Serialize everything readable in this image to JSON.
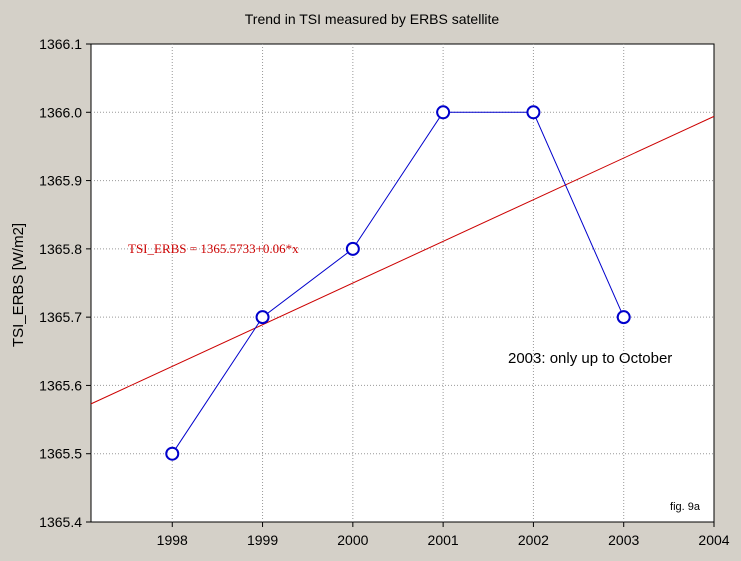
{
  "chart_data": {
    "type": "line",
    "title": "Trend in TSI measured by ERBS satellite",
    "xlabel": "",
    "ylabel": "TSI_ERBS [W/m2]",
    "xlim": [
      1997.1,
      2004
    ],
    "ylim": [
      1365.4,
      1366.1
    ],
    "x_ticks": [
      "1998",
      "1999",
      "2000",
      "2001",
      "2002",
      "2003",
      "2004"
    ],
    "y_ticks": [
      "1365.4",
      "1365.5",
      "1365.6",
      "1365.7",
      "1365.8",
      "1365.9",
      "1366.0",
      "1366.1"
    ],
    "grid": true,
    "series": [
      {
        "x": [
          1998,
          1999,
          2000,
          2001,
          2002,
          2003
        ],
        "values": [
          1365.5,
          1365.7,
          1365.8,
          1366.0,
          1366.0,
          1365.7
        ],
        "color": "#0000cc",
        "marker": "circle"
      }
    ],
    "trend": {
      "equation": "TSI_ERBS = 1365.5733+0.06*x",
      "color": "#cc0000",
      "y_at_left": 1365.573,
      "y_at_right": 1365.994
    },
    "annotations": [
      {
        "text": "2003: only up to October"
      },
      {
        "text": "fig. 9a"
      }
    ],
    "colors": {
      "background": "#d4d0c8",
      "plot_area": "#ffffff",
      "grid": "#999999"
    }
  }
}
